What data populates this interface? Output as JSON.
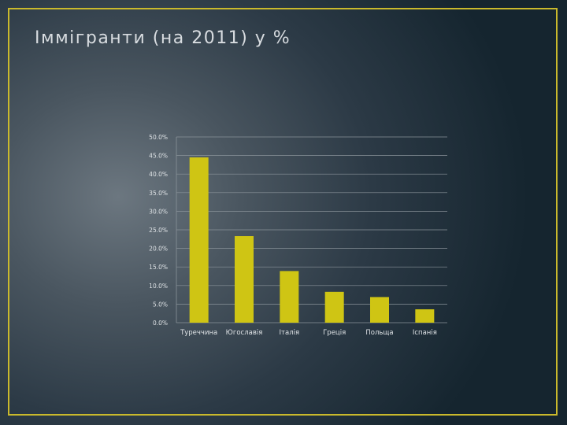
{
  "slide": {
    "title": "Іммігранти (на 2011) у %"
  },
  "colors": {
    "bar": "#cfc514",
    "frame": "#c9b92c",
    "grid": "#8a939a",
    "text": "#dfe3e6"
  },
  "chart_data": {
    "type": "bar",
    "title": "",
    "xlabel": "",
    "ylabel": "",
    "categories": [
      "Туреччина",
      "Югославія",
      "Італія",
      "Греція",
      "Польща",
      "Іспанія"
    ],
    "values": [
      44.5,
      23.3,
      13.9,
      8.3,
      6.9,
      3.6
    ],
    "ylim": [
      0,
      50
    ],
    "yticks": [
      "0.0%",
      "5.0%",
      "10.0%",
      "15.0%",
      "20.0%",
      "25.0%",
      "30.0%",
      "35.0%",
      "40.0%",
      "45.0%",
      "50.0%"
    ],
    "grid": true,
    "legend": "none"
  }
}
